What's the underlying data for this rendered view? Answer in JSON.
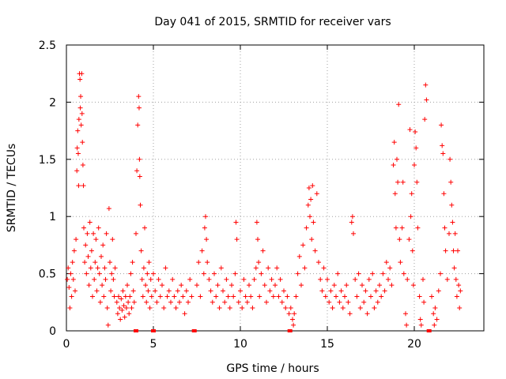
{
  "chart_data": {
    "type": "scatter",
    "title": "Day 041 of 2015, SRMTID for receiver vars",
    "xlabel": "GPS time / hours",
    "ylabel": "SRMTID / TECUs",
    "xlim": [
      0,
      24
    ],
    "ylim": [
      0,
      2.5
    ],
    "xticks": [
      0,
      5,
      10,
      15,
      20
    ],
    "yticks": [
      0,
      0.5,
      1,
      1.5,
      2,
      2.5
    ],
    "xtick_labels": [
      "0",
      "5",
      "10",
      "15",
      "20"
    ],
    "ytick_labels": [
      "0",
      "0.5",
      "1",
      "1.5",
      "2",
      "2.5"
    ],
    "grid": true,
    "marker": "+",
    "color": "#ff0000",
    "gap_markers_x": [
      4.0,
      5.0,
      7.35,
      12.85,
      20.85
    ],
    "series": [
      {
        "name": "SRMTID",
        "points": [
          [
            0.05,
            0.45
          ],
          [
            0.1,
            0.55
          ],
          [
            0.15,
            0.38
          ],
          [
            0.2,
            0.2
          ],
          [
            0.25,
            0.5
          ],
          [
            0.3,
            0.3
          ],
          [
            0.35,
            0.6
          ],
          [
            0.4,
            0.45
          ],
          [
            0.45,
            0.7
          ],
          [
            0.5,
            0.35
          ],
          [
            0.55,
            0.8
          ],
          [
            0.6,
            1.4
          ],
          [
            0.62,
            1.6
          ],
          [
            0.65,
            1.75
          ],
          [
            0.68,
            1.55
          ],
          [
            0.7,
            1.27
          ],
          [
            0.72,
            1.85
          ],
          [
            0.75,
            2.25
          ],
          [
            0.78,
            2.2
          ],
          [
            0.8,
            1.95
          ],
          [
            0.82,
            2.05
          ],
          [
            0.85,
            1.8
          ],
          [
            0.88,
            2.25
          ],
          [
            0.9,
            1.9
          ],
          [
            0.92,
            1.65
          ],
          [
            0.95,
            1.45
          ],
          [
            0.98,
            1.27
          ],
          [
            1.0,
            0.9
          ],
          [
            1.05,
            0.6
          ],
          [
            1.1,
            0.75
          ],
          [
            1.15,
            0.5
          ],
          [
            1.2,
            0.85
          ],
          [
            1.25,
            0.65
          ],
          [
            1.3,
            0.4
          ],
          [
            1.35,
            0.95
          ],
          [
            1.4,
            0.55
          ],
          [
            1.45,
            0.7
          ],
          [
            1.5,
            0.3
          ],
          [
            1.55,
            0.85
          ],
          [
            1.6,
            0.45
          ],
          [
            1.65,
            0.6
          ],
          [
            1.7,
            0.8
          ],
          [
            1.75,
            0.35
          ],
          [
            1.8,
            0.55
          ],
          [
            1.85,
            0.9
          ],
          [
            1.9,
            0.5
          ],
          [
            1.95,
            0.25
          ],
          [
            2.0,
            0.65
          ],
          [
            2.05,
            0.4
          ],
          [
            2.1,
            0.75
          ],
          [
            2.15,
            0.3
          ],
          [
            2.2,
            0.55
          ],
          [
            2.25,
            0.45
          ],
          [
            2.3,
            0.85
          ],
          [
            2.35,
            0.2
          ],
          [
            2.4,
            0.05
          ],
          [
            2.45,
            1.07
          ],
          [
            2.5,
            0.6
          ],
          [
            2.55,
            0.35
          ],
          [
            2.6,
            0.5
          ],
          [
            2.65,
            0.8
          ],
          [
            2.7,
            0.45
          ],
          [
            2.75,
            0.3
          ],
          [
            2.8,
            0.55
          ],
          [
            2.9,
            0.25
          ],
          [
            2.95,
            0.15
          ],
          [
            3.0,
            0.3
          ],
          [
            3.05,
            0.2
          ],
          [
            3.1,
            0.1
          ],
          [
            3.15,
            0.28
          ],
          [
            3.2,
            0.18
          ],
          [
            3.25,
            0.35
          ],
          [
            3.3,
            0.22
          ],
          [
            3.35,
            0.12
          ],
          [
            3.4,
            0.3
          ],
          [
            3.45,
            0.2
          ],
          [
            3.5,
            0.4
          ],
          [
            3.55,
            0.25
          ],
          [
            3.6,
            0.15
          ],
          [
            3.65,
            0.3
          ],
          [
            3.7,
            0.5
          ],
          [
            3.75,
            0.2
          ],
          [
            3.8,
            0.6
          ],
          [
            3.85,
            0.35
          ],
          [
            3.9,
            0.25
          ],
          [
            4.0,
            0.85
          ],
          [
            4.05,
            1.4
          ],
          [
            4.1,
            1.8
          ],
          [
            4.15,
            2.05
          ],
          [
            4.18,
            1.95
          ],
          [
            4.2,
            1.5
          ],
          [
            4.22,
            1.35
          ],
          [
            4.25,
            1.1
          ],
          [
            4.3,
            0.7
          ],
          [
            4.35,
            0.45
          ],
          [
            4.4,
            0.3
          ],
          [
            4.45,
            0.55
          ],
          [
            4.5,
            0.9
          ],
          [
            4.55,
            0.4
          ],
          [
            4.6,
            0.25
          ],
          [
            4.65,
            0.5
          ],
          [
            4.7,
            0.35
          ],
          [
            4.75,
            0.6
          ],
          [
            4.8,
            0.2
          ],
          [
            4.85,
            0.45
          ],
          [
            4.9,
            0.3
          ],
          [
            5.0,
            0.5
          ],
          [
            5.1,
            0.35
          ],
          [
            5.2,
            0.25
          ],
          [
            5.3,
            0.45
          ],
          [
            5.4,
            0.3
          ],
          [
            5.5,
            0.4
          ],
          [
            5.6,
            0.2
          ],
          [
            5.7,
            0.55
          ],
          [
            5.8,
            0.3
          ],
          [
            5.9,
            0.35
          ],
          [
            6.0,
            0.25
          ],
          [
            6.1,
            0.45
          ],
          [
            6.2,
            0.3
          ],
          [
            6.3,
            0.2
          ],
          [
            6.4,
            0.35
          ],
          [
            6.5,
            0.25
          ],
          [
            6.6,
            0.4
          ],
          [
            6.7,
            0.3
          ],
          [
            6.8,
            0.15
          ],
          [
            6.9,
            0.35
          ],
          [
            7.0,
            0.25
          ],
          [
            7.1,
            0.45
          ],
          [
            7.2,
            0.3
          ],
          [
            7.5,
            0.4
          ],
          [
            7.6,
            0.6
          ],
          [
            7.7,
            0.3
          ],
          [
            7.8,
            0.7
          ],
          [
            7.9,
            0.5
          ],
          [
            7.95,
            0.9
          ],
          [
            8.0,
            1.0
          ],
          [
            8.05,
            0.8
          ],
          [
            8.1,
            0.6
          ],
          [
            8.2,
            0.45
          ],
          [
            8.3,
            0.35
          ],
          [
            8.4,
            0.25
          ],
          [
            8.5,
            0.5
          ],
          [
            8.6,
            0.3
          ],
          [
            8.7,
            0.4
          ],
          [
            8.8,
            0.2
          ],
          [
            8.9,
            0.55
          ],
          [
            9.0,
            0.35
          ],
          [
            9.1,
            0.25
          ],
          [
            9.2,
            0.45
          ],
          [
            9.3,
            0.3
          ],
          [
            9.4,
            0.2
          ],
          [
            9.5,
            0.4
          ],
          [
            9.6,
            0.3
          ],
          [
            9.7,
            0.5
          ],
          [
            9.75,
            0.95
          ],
          [
            9.8,
            0.8
          ],
          [
            9.9,
            0.25
          ],
          [
            10.0,
            0.35
          ],
          [
            10.1,
            0.2
          ],
          [
            10.2,
            0.45
          ],
          [
            10.3,
            0.3
          ],
          [
            10.4,
            0.25
          ],
          [
            10.5,
            0.4
          ],
          [
            10.6,
            0.3
          ],
          [
            10.7,
            0.2
          ],
          [
            10.8,
            0.45
          ],
          [
            10.9,
            0.55
          ],
          [
            10.95,
            0.95
          ],
          [
            11.0,
            0.8
          ],
          [
            11.05,
            0.6
          ],
          [
            11.1,
            0.3
          ],
          [
            11.2,
            0.5
          ],
          [
            11.3,
            0.7
          ],
          [
            11.4,
            0.4
          ],
          [
            11.5,
            0.25
          ],
          [
            11.6,
            0.55
          ],
          [
            11.7,
            0.35
          ],
          [
            11.8,
            0.45
          ],
          [
            11.9,
            0.3
          ],
          [
            12.0,
            0.4
          ],
          [
            12.1,
            0.55
          ],
          [
            12.2,
            0.3
          ],
          [
            12.3,
            0.45
          ],
          [
            12.4,
            0.25
          ],
          [
            12.5,
            0.35
          ],
          [
            12.6,
            0.2
          ],
          [
            12.7,
            0.3
          ],
          [
            12.8,
            0.15
          ],
          [
            12.9,
            0.2
          ],
          [
            13.0,
            0.1
          ],
          [
            13.05,
            0.05
          ],
          [
            13.1,
            0.15
          ],
          [
            13.2,
            0.3
          ],
          [
            13.3,
            0.5
          ],
          [
            13.4,
            0.65
          ],
          [
            13.5,
            0.4
          ],
          [
            13.6,
            0.75
          ],
          [
            13.7,
            0.55
          ],
          [
            13.8,
            0.9
          ],
          [
            13.9,
            1.1
          ],
          [
            13.95,
            1.25
          ],
          [
            14.0,
            1.0
          ],
          [
            14.05,
            1.15
          ],
          [
            14.1,
            0.8
          ],
          [
            14.15,
            1.27
          ],
          [
            14.2,
            0.95
          ],
          [
            14.3,
            0.7
          ],
          [
            14.4,
            1.2
          ],
          [
            14.5,
            0.6
          ],
          [
            14.6,
            0.45
          ],
          [
            14.7,
            0.35
          ],
          [
            14.8,
            0.55
          ],
          [
            14.9,
            0.3
          ],
          [
            15.0,
            0.45
          ],
          [
            15.1,
            0.25
          ],
          [
            15.2,
            0.35
          ],
          [
            15.3,
            0.2
          ],
          [
            15.4,
            0.4
          ],
          [
            15.5,
            0.3
          ],
          [
            15.6,
            0.5
          ],
          [
            15.7,
            0.25
          ],
          [
            15.8,
            0.35
          ],
          [
            15.9,
            0.2
          ],
          [
            16.0,
            0.3
          ],
          [
            16.1,
            0.4
          ],
          [
            16.2,
            0.25
          ],
          [
            16.3,
            0.15
          ],
          [
            16.4,
            0.95
          ],
          [
            16.45,
            1.0
          ],
          [
            16.5,
            0.85
          ],
          [
            16.6,
            0.45
          ],
          [
            16.7,
            0.3
          ],
          [
            16.8,
            0.5
          ],
          [
            16.9,
            0.2
          ],
          [
            17.0,
            0.4
          ],
          [
            17.1,
            0.25
          ],
          [
            17.2,
            0.35
          ],
          [
            17.3,
            0.15
          ],
          [
            17.4,
            0.45
          ],
          [
            17.5,
            0.3
          ],
          [
            17.6,
            0.5
          ],
          [
            17.7,
            0.2
          ],
          [
            17.8,
            0.35
          ],
          [
            17.9,
            0.25
          ],
          [
            18.0,
            0.4
          ],
          [
            18.1,
            0.3
          ],
          [
            18.2,
            0.5
          ],
          [
            18.3,
            0.35
          ],
          [
            18.4,
            0.6
          ],
          [
            18.5,
            0.45
          ],
          [
            18.6,
            0.55
          ],
          [
            18.7,
            0.4
          ],
          [
            18.8,
            1.45
          ],
          [
            18.85,
            1.65
          ],
          [
            18.9,
            1.2
          ],
          [
            18.95,
            0.9
          ],
          [
            19.0,
            1.5
          ],
          [
            19.05,
            1.3
          ],
          [
            19.1,
            1.98
          ],
          [
            19.15,
            0.8
          ],
          [
            19.2,
            0.6
          ],
          [
            19.3,
            0.9
          ],
          [
            19.35,
            1.3
          ],
          [
            19.4,
            0.5
          ],
          [
            19.5,
            0.15
          ],
          [
            19.55,
            0.05
          ],
          [
            19.6,
            0.45
          ],
          [
            19.7,
            0.8
          ],
          [
            19.75,
            1.76
          ],
          [
            19.8,
            1.0
          ],
          [
            19.85,
            1.2
          ],
          [
            19.9,
            0.7
          ],
          [
            19.95,
            0.4
          ],
          [
            20.0,
            1.45
          ],
          [
            20.05,
            1.74
          ],
          [
            20.1,
            1.6
          ],
          [
            20.15,
            1.3
          ],
          [
            20.2,
            0.9
          ],
          [
            20.3,
            0.3
          ],
          [
            20.35,
            0.1
          ],
          [
            20.4,
            0.05
          ],
          [
            20.5,
            0.45
          ],
          [
            20.55,
            0.25
          ],
          [
            20.6,
            1.85
          ],
          [
            20.65,
            2.15
          ],
          [
            20.7,
            2.02
          ],
          [
            21.0,
            0.3
          ],
          [
            21.1,
            0.15
          ],
          [
            21.15,
            0.05
          ],
          [
            21.2,
            0.2
          ],
          [
            21.3,
            0.1
          ],
          [
            21.4,
            0.35
          ],
          [
            21.5,
            0.5
          ],
          [
            21.55,
            1.8
          ],
          [
            21.6,
            1.62
          ],
          [
            21.65,
            1.55
          ],
          [
            21.7,
            1.2
          ],
          [
            21.75,
            0.9
          ],
          [
            21.8,
            0.7
          ],
          [
            21.9,
            0.45
          ],
          [
            22.0,
            0.85
          ],
          [
            22.05,
            1.5
          ],
          [
            22.1,
            1.3
          ],
          [
            22.15,
            1.1
          ],
          [
            22.2,
            0.95
          ],
          [
            22.25,
            0.7
          ],
          [
            22.3,
            0.55
          ],
          [
            22.35,
            0.85
          ],
          [
            22.4,
            0.45
          ],
          [
            22.45,
            0.3
          ],
          [
            22.5,
            0.7
          ],
          [
            22.55,
            0.4
          ],
          [
            22.6,
            0.2
          ],
          [
            22.65,
            0.35
          ]
        ]
      }
    ]
  }
}
